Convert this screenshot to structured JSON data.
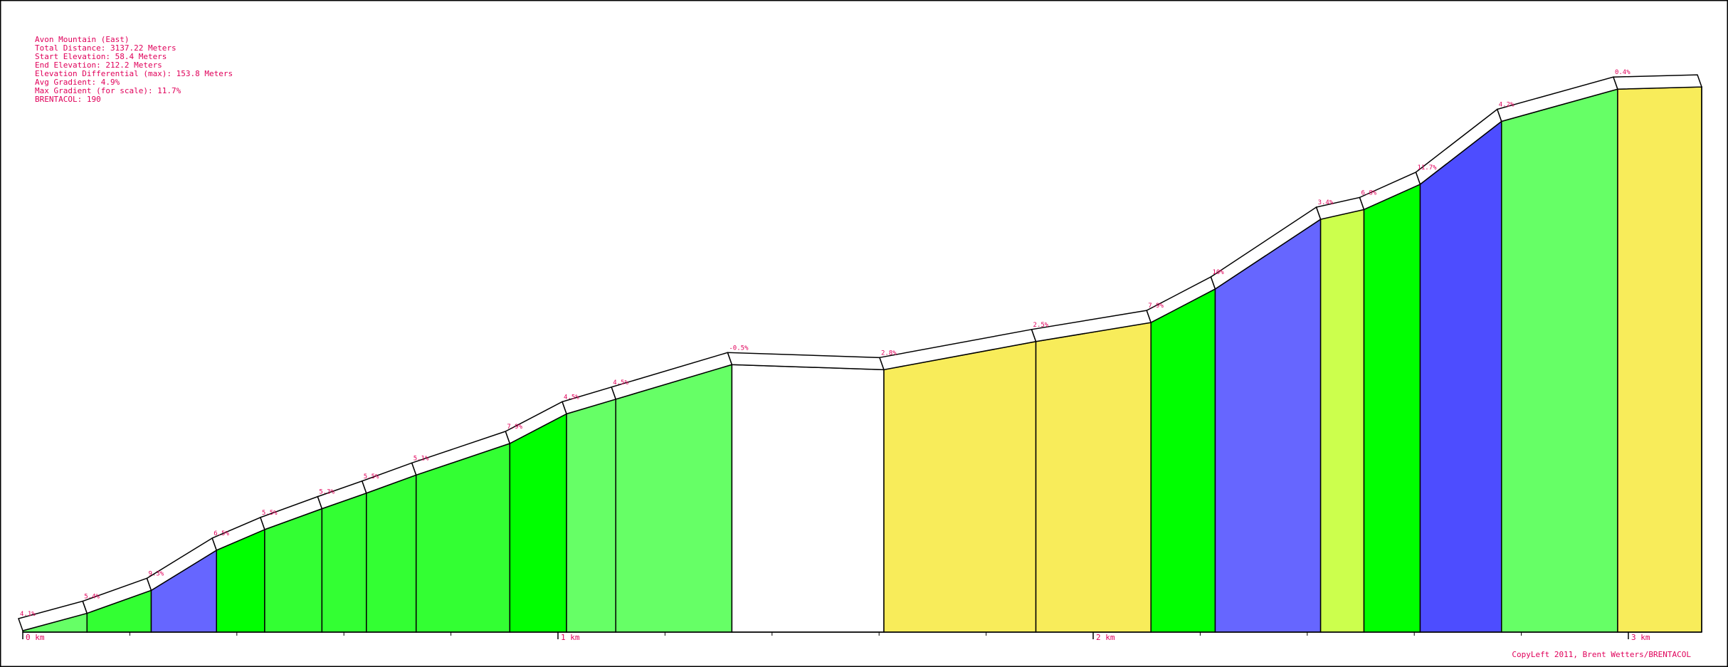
{
  "colors": {
    "background": "#ffffff",
    "frame": "#000000",
    "label_text": "#e0005a",
    "axis_text": "#e0005a",
    "profile_edge": "#000000"
  },
  "info": {
    "name": "Avon Mountain (East)",
    "total_distance": "Total Distance: 3137.22 Meters",
    "start_elevation": "Start Elevation: 58.4 Meters",
    "end_elevation": "End Elevation: 212.2 Meters",
    "elevation_diff": "Elevation Differential (max): 153.8 Meters",
    "avg_gradient": "Avg Gradient: 4.9%",
    "max_gradient": "Max Gradient (for scale): 11.7%",
    "brentacol": "BRENTACOL: 190"
  },
  "copyright": "CopyLeft 2011, Brent Wetters/BRENTACOL",
  "chart_data": {
    "type": "area",
    "title": "Avon Mountain (East)",
    "xlabel": "",
    "ylabel": "",
    "x_unit": "km",
    "xlim": [
      0,
      3.137
    ],
    "x_ticks": [
      {
        "value": 0,
        "label": "0 km"
      },
      {
        "value": 1,
        "label": "1 km"
      },
      {
        "value": 2,
        "label": "2 km"
      },
      {
        "value": 3,
        "label": "3 km"
      }
    ],
    "minor_tick_spacing_km": 0.2,
    "grid": false,
    "gradient_color_scale": [
      {
        "max_gradient": 0,
        "color": "#ffffff"
      },
      {
        "max_gradient": 3,
        "color": "#f8ec5a"
      },
      {
        "max_gradient": 4,
        "color": "#ccff4d"
      },
      {
        "max_gradient": 5,
        "color": "#66ff66"
      },
      {
        "max_gradient": 6,
        "color": "#33ff33"
      },
      {
        "max_gradient": 8,
        "color": "#00ff00"
      },
      {
        "max_gradient": 10,
        "color": "#6666ff"
      },
      {
        "max_gradient": 12,
        "color": "#4d4dff"
      }
    ],
    "segments": [
      {
        "start_km": 0.0,
        "end_km": 0.12,
        "gradient": 4.1,
        "label": "4.1%"
      },
      {
        "start_km": 0.12,
        "end_km": 0.24,
        "gradient": 5.4,
        "label": "5.4%"
      },
      {
        "start_km": 0.24,
        "end_km": 0.362,
        "gradient": 9.3,
        "label": "9.3%"
      },
      {
        "start_km": 0.362,
        "end_km": 0.452,
        "gradient": 6.5,
        "label": "6.5%"
      },
      {
        "start_km": 0.452,
        "end_km": 0.559,
        "gradient": 5.5,
        "label": "5.5%"
      },
      {
        "start_km": 0.559,
        "end_km": 0.642,
        "gradient": 5.3,
        "label": "5.3%"
      },
      {
        "start_km": 0.642,
        "end_km": 0.735,
        "gradient": 5.5,
        "label": "5.5%"
      },
      {
        "start_km": 0.735,
        "end_km": 0.91,
        "gradient": 5.1,
        "label": "5.1%"
      },
      {
        "start_km": 0.91,
        "end_km": 1.016,
        "gradient": 7.9,
        "label": "7.9%"
      },
      {
        "start_km": 1.016,
        "end_km": 1.108,
        "gradient": 4.5,
        "label": "4.5%"
      },
      {
        "start_km": 1.108,
        "end_km": 1.325,
        "gradient": 4.5,
        "label": "4.5%"
      },
      {
        "start_km": 1.325,
        "end_km": 1.609,
        "gradient": -0.5,
        "label": "-0.5%"
      },
      {
        "start_km": 1.609,
        "end_km": 1.893,
        "gradient": 2.8,
        "label": "2.8%"
      },
      {
        "start_km": 1.893,
        "end_km": 2.108,
        "gradient": 2.5,
        "label": "2.5%"
      },
      {
        "start_km": 2.108,
        "end_km": 2.228,
        "gradient": 7.9,
        "label": "7.9%"
      },
      {
        "start_km": 2.228,
        "end_km": 2.425,
        "gradient": 10.0,
        "label": "10%"
      },
      {
        "start_km": 2.425,
        "end_km": 2.506,
        "gradient": 3.4,
        "label": "3.4%"
      },
      {
        "start_km": 2.506,
        "end_km": 2.611,
        "gradient": 6.8,
        "label": "6.8%"
      },
      {
        "start_km": 2.611,
        "end_km": 2.763,
        "gradient": 11.7,
        "label": "11.7%"
      },
      {
        "start_km": 2.763,
        "end_km": 2.98,
        "gradient": 4.2,
        "label": "4.2%"
      },
      {
        "start_km": 2.98,
        "end_km": 3.137,
        "gradient": 0.4,
        "label": "0.4%"
      }
    ]
  }
}
